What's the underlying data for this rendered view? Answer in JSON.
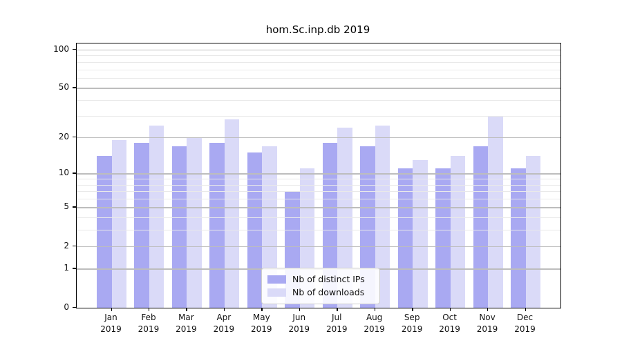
{
  "figure": {
    "title": "hom.Sc.inp.db 2019",
    "background_color": "#ffffff",
    "axis_color": "#000000",
    "major_grid_color": "#bdbdbd",
    "minor_grid_color": "#e9e9e9"
  },
  "legend": {
    "position": "lower center",
    "items": [
      {
        "label": "Nb of distinct IPs",
        "color": "#a9a9f2"
      },
      {
        "label": "Nb of downloads",
        "color": "#dadaf8"
      }
    ]
  },
  "chart_data": {
    "type": "bar",
    "title": "hom.Sc.inp.db 2019",
    "categories": [
      "Jan 2019",
      "Feb 2019",
      "Mar 2019",
      "Apr 2019",
      "May 2019",
      "Jun 2019",
      "Jul 2019",
      "Aug 2019",
      "Sep 2019",
      "Oct 2019",
      "Nov 2019",
      "Dec 2019"
    ],
    "x_tick_top_lines": [
      "Jan",
      "Feb",
      "Mar",
      "Apr",
      "May",
      "Jun",
      "Jul",
      "Aug",
      "Sep",
      "Oct",
      "Nov",
      "Dec"
    ],
    "x_tick_bottom_line": "2019",
    "series": [
      {
        "name": "Nb of distinct IPs",
        "color": "#a9a9f2",
        "values": [
          14,
          18,
          17,
          18,
          15,
          7,
          18,
          17,
          11,
          11,
          17,
          11
        ]
      },
      {
        "name": "Nb of downloads",
        "color": "#dadaf8",
        "values": [
          19,
          25,
          20,
          28,
          17,
          11,
          24,
          25,
          13,
          14,
          30,
          14
        ]
      }
    ],
    "xlabel": "",
    "ylabel": "",
    "yscale": "log1p",
    "ylim": [
      0,
      112
    ],
    "y_major_ticks": [
      0,
      1,
      2,
      5,
      10,
      20,
      50,
      100
    ],
    "y_minor_ticks": [
      3,
      4,
      6,
      7,
      8,
      9,
      30,
      40,
      60,
      70,
      80,
      90
    ],
    "grid": "both",
    "legend_position": "lower center"
  }
}
